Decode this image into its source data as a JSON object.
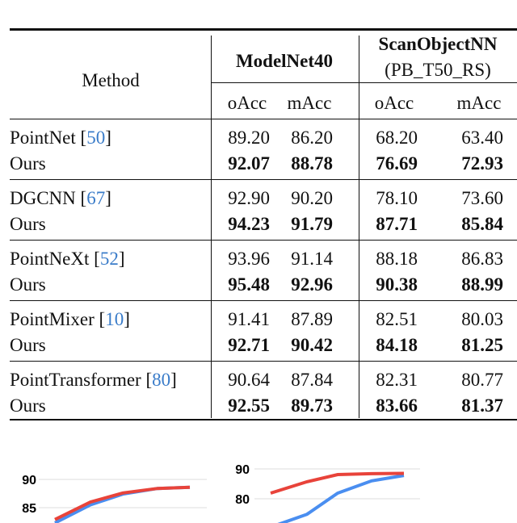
{
  "table": {
    "header": {
      "method": "Method",
      "group1": "ModelNet40",
      "group2_title": "ScanObjectNN",
      "group2_sub": "(PB_T50_RS)",
      "cols": [
        "oAcc",
        "mAcc",
        "oAcc",
        "mAcc"
      ]
    },
    "rows": [
      {
        "name": "PointNet",
        "cite": "50",
        "values": [
          "89.20",
          "86.20",
          "68.20",
          "63.40"
        ],
        "ours": [
          "92.07",
          "88.78",
          "76.69",
          "72.93"
        ]
      },
      {
        "name": "DGCNN",
        "cite": "67",
        "values": [
          "92.90",
          "90.20",
          "78.10",
          "73.60"
        ],
        "ours": [
          "94.23",
          "91.79",
          "87.71",
          "85.84"
        ]
      },
      {
        "name": "PointNeXt",
        "cite": "52",
        "values": [
          "93.96",
          "91.14",
          "88.18",
          "86.83"
        ],
        "ours": [
          "95.48",
          "92.96",
          "90.38",
          "88.99"
        ]
      },
      {
        "name": "PointMixer",
        "cite": "10",
        "values": [
          "91.41",
          "87.89",
          "82.51",
          "80.03"
        ],
        "ours": [
          "92.71",
          "90.42",
          "84.18",
          "81.25"
        ]
      },
      {
        "name": "PointTransformer",
        "cite": "80",
        "values": [
          "90.64",
          "87.84",
          "82.31",
          "80.77"
        ],
        "ours": [
          "92.55",
          "89.73",
          "83.66",
          "81.37"
        ]
      }
    ],
    "ours_label": "Ours"
  },
  "chart_data": [
    {
      "type": "line",
      "yticks": [
        "90",
        "85"
      ],
      "grid": true,
      "series": [
        {
          "color": "#e8433a",
          "values": [
            82.9,
            86.0,
            87.6,
            88.4,
            88.6
          ]
        },
        {
          "color": "#4a8ef0",
          "values": [
            82.3,
            85.5,
            87.4,
            88.4,
            88.6
          ]
        }
      ]
    },
    {
      "type": "line",
      "yticks": [
        "90",
        "80"
      ],
      "grid": true,
      "series": [
        {
          "color": "#e8433a",
          "values": [
            81.9,
            85.7,
            88.1,
            88.4,
            88.5
          ]
        },
        {
          "color": "#4a8ef0",
          "values": [
            70.5,
            74.8,
            81.9,
            86.0,
            87.8
          ]
        }
      ]
    }
  ]
}
